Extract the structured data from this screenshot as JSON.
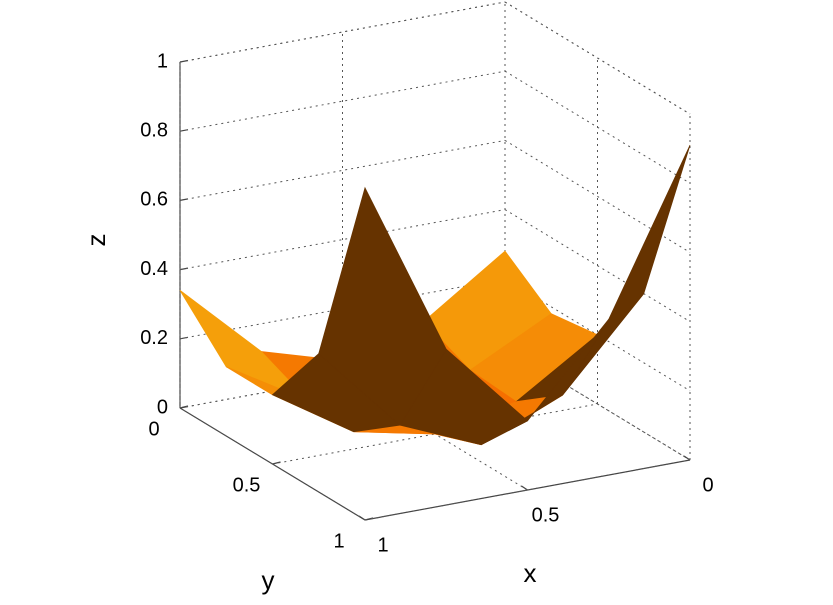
{
  "chart_data": {
    "type": "surface",
    "x_label": "x",
    "y_label": "y",
    "z_label": "z",
    "x": [
      0,
      0.25,
      0.5,
      0.75,
      1
    ],
    "y": [
      0,
      0.25,
      0.5,
      0.75,
      1
    ],
    "z": [
      [
        0.28,
        0.12,
        0.05,
        0.12,
        0.34
      ],
      [
        0.18,
        0.06,
        0.02,
        0.06,
        0.2
      ],
      [
        0.2,
        0.05,
        0,
        0.05,
        0.2
      ],
      [
        0.4,
        0.15,
        0.05,
        0.15,
        0.4
      ],
      [
        0.91,
        0.45,
        0.2,
        0.45,
        0.96
      ]
    ],
    "xlim": [
      0,
      1
    ],
    "ylim": [
      0,
      1
    ],
    "zlim": [
      0,
      1
    ],
    "xticks": [
      0,
      0.5,
      1
    ],
    "yticks": [
      0,
      0.5,
      1
    ],
    "zticks": [
      0,
      0.2,
      0.4,
      0.6,
      0.8,
      1
    ],
    "grid": true
  }
}
